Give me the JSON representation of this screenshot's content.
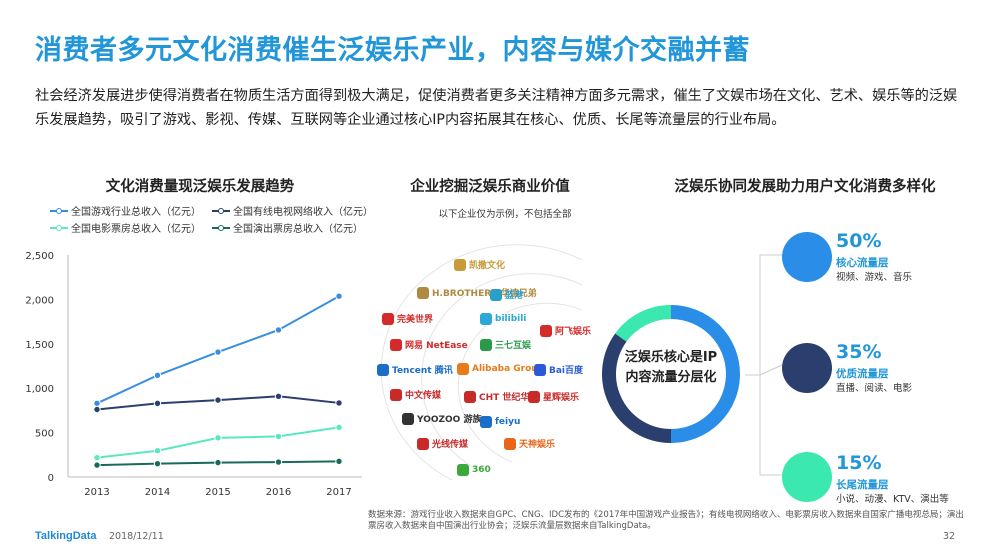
{
  "title": "消费者多元文化消费催生泛娱乐产业，内容与媒介交融并蓄",
  "intro": "社会经济发展进步使得消费者在物质生活方面得到极大满足，促使消费者更多关注精神方面多元需求，催生了文娱市场在文化、艺术、娱乐等的泛娱乐发展趋势，吸引了游戏、影视、传媒、互联网等企业通过核心IP内容拓展其在核心、优质、长尾等流量层的行业布局。",
  "left_section": {
    "title": "文化消费量现泛娱乐发展趋势"
  },
  "middle_section": {
    "title": "企业挖掘泛娱乐商业价值",
    "note": "以下企业仅为示例，不包括全部",
    "logos": [
      {
        "name": "凯撒文化",
        "color": "#c89a3a"
      },
      {
        "name": "H.BROTHERS 华谊兄弟",
        "color": "#b08a40"
      },
      {
        "name": "蓝港",
        "color": "#2aa0c8"
      },
      {
        "name": "完美世界",
        "color": "#d42a2a"
      },
      {
        "name": "bilibili",
        "color": "#2aa8d8"
      },
      {
        "name": "网易 NetEase",
        "color": "#d42a2a"
      },
      {
        "name": "三七互娱",
        "color": "#2a9a4a"
      },
      {
        "name": "阿飞娱乐",
        "color": "#d42a2a"
      },
      {
        "name": "Tencent 腾讯",
        "color": "#1a6ec8"
      },
      {
        "name": "Alibaba Group",
        "color": "#e87a1a"
      },
      {
        "name": "Bai百度",
        "color": "#2a5ad8"
      },
      {
        "name": "中文传媒",
        "color": "#c82a2a"
      },
      {
        "name": "CHT 世纪华通",
        "color": "#c82a2a"
      },
      {
        "name": "星辉娱乐",
        "color": "#c82a2a"
      },
      {
        "name": "YOOZOO 游族",
        "color": "#333333"
      },
      {
        "name": "feiyu",
        "color": "#1a6ec8"
      },
      {
        "name": "光线传媒",
        "color": "#c82a2a"
      },
      {
        "name": "天神娱乐",
        "color": "#e8661a"
      },
      {
        "name": "360",
        "color": "#3aa83a"
      }
    ],
    "ring_text_line1": "泛娱乐核心是IP",
    "ring_text_line2": "内容流量分层化"
  },
  "right_section": {
    "title": "泛娱乐协同发展助力用户文化消费多样化",
    "tiers": [
      {
        "pct": "50%",
        "name": "核心流量层",
        "desc": "视频、游戏、音乐",
        "color": "#2a8ee8"
      },
      {
        "pct": "35%",
        "name": "优质流量层",
        "desc": "直播、阅读、电影",
        "color": "#2a3f6e"
      },
      {
        "pct": "15%",
        "name": "长尾流量层",
        "desc": "小说、动漫、KTV、演出等",
        "color": "#3ae8b0"
      }
    ]
  },
  "ring_segments": [
    {
      "fraction": 0.5,
      "color": "#2a8ee8"
    },
    {
      "fraction": 0.35,
      "color": "#2a3f6e"
    },
    {
      "fraction": 0.15,
      "color": "#3ae8b0"
    }
  ],
  "chart_data": {
    "type": "line",
    "title": "文化消费量现泛娱乐发展趋势",
    "categories": [
      "2013",
      "2014",
      "2015",
      "2016",
      "2017"
    ],
    "ylim": [
      0,
      2500
    ],
    "yticks": [
      "0",
      "500",
      "1,000",
      "1,500",
      "2,000",
      "2,500"
    ],
    "grid": false,
    "legend_position": "top",
    "series": [
      {
        "name": "全国游戏行业总收入（亿元）",
        "color": "#3a8ee0",
        "values": [
          830,
          1145,
          1407,
          1656,
          2036
        ]
      },
      {
        "name": "全国有线电视网络收入（亿元）",
        "color": "#2a3f6e",
        "values": [
          760,
          829,
          866,
          909,
          834
        ]
      },
      {
        "name": "全国电影票房总收入（亿元）",
        "color": "#5ae8c0",
        "values": [
          218,
          296,
          441,
          457,
          559
        ]
      },
      {
        "name": "全国演出票房总收入（亿元）",
        "color": "#1a6a5a",
        "values": [
          134,
          150,
          162,
          168,
          176
        ]
      }
    ]
  },
  "source": "数据来源：游戏行业收入数据来自GPC、CNG、IDC发布的《2017年中国游戏产业报告》；有线电视网络收入、电影票房收入数据来自国家广播电视总局；演出票房收入数据来自中国演出行业协会；泛娱乐流量层数据来自TalkingData。",
  "footer": {
    "brand": "TalkingData",
    "date": "2018/12/11",
    "page": "32"
  }
}
